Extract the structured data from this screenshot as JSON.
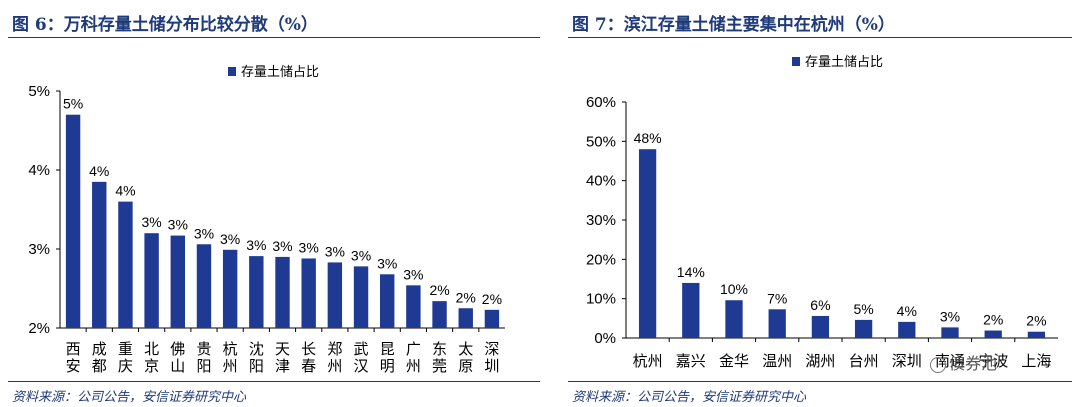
{
  "colors": {
    "bar": "#1f3a93",
    "title": "#1f3a7a"
  },
  "chart_data": [
    {
      "type": "bar",
      "title": "图 6：万科存量土储分布比较分散（%）",
      "legend": "存量土储占比",
      "categories": [
        "西安",
        "成都",
        "重庆",
        "北京",
        "佛山",
        "贵阳",
        "杭州",
        "沈阳",
        "天津",
        "长春",
        "郑州",
        "武汉",
        "昆明",
        "广州",
        "东莞",
        "太原",
        "深圳"
      ],
      "values": [
        4.7,
        3.85,
        3.6,
        3.2,
        3.17,
        3.06,
        2.99,
        2.91,
        2.9,
        2.88,
        2.83,
        2.78,
        2.68,
        2.54,
        2.34,
        2.25,
        2.23
      ],
      "labels": [
        "5%",
        "4%",
        "4%",
        "3%",
        "3%",
        "3%",
        "3%",
        "3%",
        "3%",
        "3%",
        "3%",
        "3%",
        "3%",
        "3%",
        "2%",
        "2%",
        "2%"
      ],
      "yticks": [
        "5%",
        "4%",
        "3%",
        "2%"
      ],
      "ylim": [
        2,
        5
      ],
      "source": "资料来源：公司公告，安信证券研究中心"
    },
    {
      "type": "bar",
      "title": "图 7：滨江存量土储主要集中在杭州（%）",
      "legend": "存量土储占比",
      "categories": [
        "杭州",
        "嘉兴",
        "金华",
        "温州",
        "湖州",
        "台州",
        "深圳",
        "南通",
        "宁波",
        "上海"
      ],
      "values": [
        48,
        14,
        9.6,
        7.3,
        5.6,
        4.6,
        4.1,
        2.7,
        1.9,
        1.6
      ],
      "labels": [
        "48%",
        "14%",
        "10%",
        "7%",
        "6%",
        "5%",
        "4%",
        "3%",
        "2%",
        "2%"
      ],
      "yticks": [
        "60%",
        "50%",
        "40%",
        "30%",
        "20%",
        "10%",
        "0%"
      ],
      "ylim": [
        0,
        60
      ],
      "source": "资料来源：公司公告，安信证券研究中心"
    }
  ],
  "watermark": "债券池"
}
